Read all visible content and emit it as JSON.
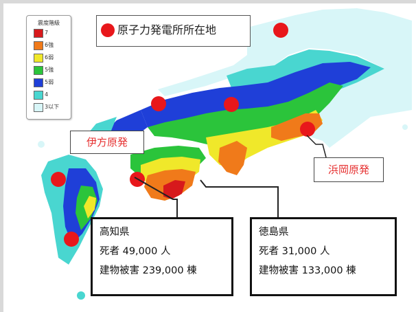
{
  "legend": {
    "title": "震度階級",
    "items": [
      {
        "label": "7",
        "color": "#d7191c"
      },
      {
        "label": "6強",
        "color": "#f07a1a"
      },
      {
        "label": "6弱",
        "color": "#f0e82a"
      },
      {
        "label": "5強",
        "color": "#2bc43b"
      },
      {
        "label": "5弱",
        "color": "#1f3fd8"
      },
      {
        "label": "4",
        "color": "#49d6d0"
      },
      {
        "label": "3以下",
        "color": "#d8f6f8"
      }
    ]
  },
  "plant_title": "原子力発電所所在地",
  "plant_labels": {
    "ikata": "伊方原発",
    "hamaoka": "浜岡原発"
  },
  "prefectures": {
    "kochi": {
      "name": "高知県",
      "deaths": "死者 49,000 人",
      "damage": "建物被害 239,000 棟"
    },
    "tokushima": {
      "name": "徳島県",
      "deaths": "死者 31,000 人",
      "damage": "建物被害 133,000 棟"
    }
  },
  "colors": {
    "plant_marker": "#e8171b",
    "plant_label_text": "#e63030"
  },
  "icons": [
    "plant-marker-dot"
  ]
}
